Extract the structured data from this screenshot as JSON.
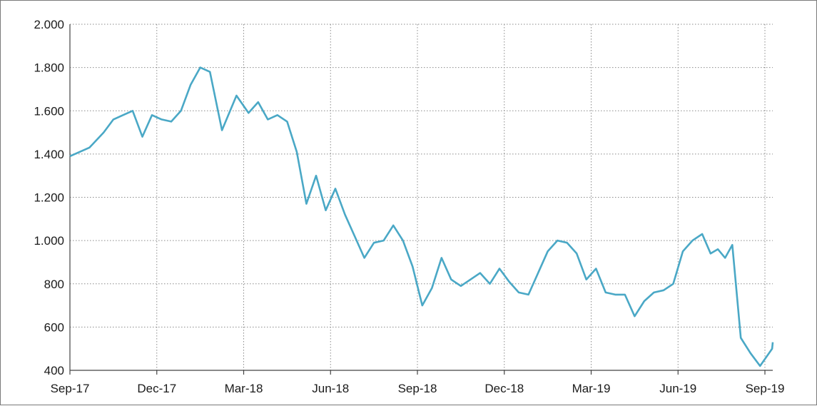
{
  "chart_data": {
    "type": "line",
    "title": "",
    "xlabel": "",
    "ylabel": "",
    "grid": true,
    "legend": "none",
    "x_ticks": [
      "Sep-17",
      "Dec-17",
      "Mar-18",
      "Jun-18",
      "Sep-18",
      "Dec-18",
      "Mar-19",
      "Jun-19",
      "Sep-19"
    ],
    "y_ticks": [
      "400",
      "600",
      "800",
      "1.000",
      "1.200",
      "1.400",
      "1.600",
      "1.800",
      "2.000"
    ],
    "ylim": [
      400,
      2000
    ],
    "xlim": [
      "Sep-17",
      "Oct-19"
    ],
    "series": [
      {
        "color": "#4aa8c6",
        "x": [
          "Sep-17",
          "Sep-17",
          "Oct-17",
          "Oct-17",
          "Oct-17",
          "Nov-17",
          "Nov-17",
          "Nov-17",
          "Dec-17",
          "Dec-17",
          "Dec-17",
          "Jan-18",
          "Jan-18",
          "Jan-18",
          "Feb-18",
          "Feb-18",
          "Mar-18",
          "Mar-18",
          "Mar-18",
          "Apr-18",
          "Apr-18",
          "Apr-18",
          "May-18",
          "May-18",
          "May-18",
          "Jun-18",
          "Jun-18",
          "Jun-18",
          "Jul-18",
          "Jul-18",
          "Jul-18",
          "Aug-18",
          "Aug-18",
          "Aug-18",
          "Sep-18",
          "Sep-18",
          "Sep-18",
          "Oct-18",
          "Oct-18",
          "Oct-18",
          "Nov-18",
          "Nov-18",
          "Nov-18",
          "Dec-18",
          "Dec-18",
          "Dec-18",
          "Jan-19",
          "Jan-19",
          "Jan-19",
          "Feb-19",
          "Feb-19",
          "Feb-19",
          "Mar-19",
          "Mar-19",
          "Mar-19",
          "Apr-19",
          "Apr-19",
          "Apr-19",
          "May-19",
          "May-19",
          "May-19",
          "Jun-19",
          "Jun-19",
          "Jun-19",
          "Jul-19",
          "Jul-19",
          "Jul-19",
          "Jul-19",
          "Aug-19",
          "Aug-19",
          "Aug-19",
          "Sep-19",
          "Sep-19"
        ],
        "values": [
          1390,
          1430,
          1500,
          1560,
          1580,
          1600,
          1480,
          1580,
          1560,
          1550,
          1600,
          1720,
          1800,
          1780,
          1510,
          1670,
          1590,
          1640,
          1560,
          1580,
          1550,
          1410,
          1170,
          1300,
          1140,
          1240,
          1120,
          1020,
          920,
          990,
          1000,
          1070,
          1000,
          880,
          700,
          780,
          920,
          820,
          790,
          820,
          850,
          800,
          870,
          810,
          760,
          750,
          850,
          950,
          1000,
          990,
          940,
          820,
          870,
          760,
          750,
          750,
          650,
          720,
          760,
          770,
          800,
          950,
          1000,
          1030,
          940,
          960,
          920,
          980,
          550,
          480,
          420,
          500,
          530
        ]
      }
    ]
  }
}
